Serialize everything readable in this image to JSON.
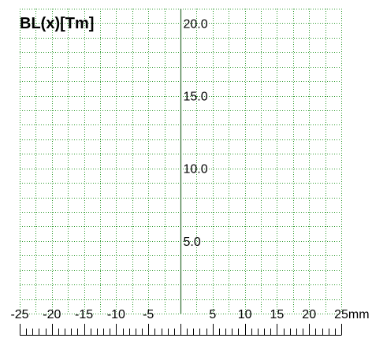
{
  "chart_data": {
    "type": "line",
    "title": "BL(x)[Tm]",
    "xlabel": "",
    "ylabel": "",
    "x_unit": "mm",
    "xlim": [
      -25,
      25
    ],
    "ylim": [
      0,
      21
    ],
    "x_grid_step": 2.5,
    "y_grid_step": 1.0,
    "x_minor_tick_step": 1,
    "grid": true,
    "x_tick_labels": [
      "-25",
      "-20",
      "-15",
      "-10",
      "-5",
      "5",
      "10",
      "15",
      "20",
      "25mm"
    ],
    "y_tick_labels": [
      "5.0",
      "10.0",
      "15.0",
      "20.0"
    ],
    "series": [],
    "colors": {
      "grid": "#2e9a2e",
      "axis": "#2f6b2f",
      "text": "#000000",
      "background": "#ffffff"
    }
  }
}
